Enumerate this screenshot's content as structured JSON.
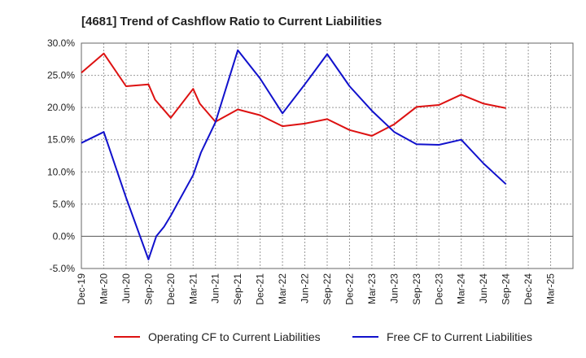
{
  "chart_data": {
    "type": "line",
    "title": "[4681]  Trend of Cashflow Ratio to Current Liabilities",
    "x_labels": [
      "Dec-19",
      "Mar-20",
      "Jun-20",
      "Sep-20",
      "Dec-20",
      "Mar-21",
      "Jun-21",
      "Sep-21",
      "Dec-21",
      "Mar-22",
      "Jun-22",
      "Sep-22",
      "Dec-22",
      "Mar-23",
      "Jun-23",
      "Sep-23",
      "Dec-23",
      "Mar-24",
      "Jun-24",
      "Sep-24",
      "Dec-24",
      "Mar-25"
    ],
    "y_ticks": [
      "30.0%",
      "25.0%",
      "20.0%",
      "15.0%",
      "10.0%",
      "5.0%",
      "0.0%",
      "-5.0%"
    ],
    "ylim": [
      -5,
      30
    ],
    "grid": true,
    "legend_position": "bottom",
    "series": [
      {
        "name": "Operating CF to Current Liabilities",
        "color": "#dd1111",
        "points": [
          [
            0,
            25.4
          ],
          [
            1,
            28.4
          ],
          [
            2,
            23.3
          ],
          [
            3,
            23.6
          ],
          [
            3.3,
            21.2
          ],
          [
            4,
            18.4
          ],
          [
            5,
            22.9
          ],
          [
            5.3,
            20.6
          ],
          [
            6,
            17.8
          ],
          [
            7,
            19.7
          ],
          [
            8,
            18.8
          ],
          [
            9,
            17.1
          ],
          [
            10,
            17.5
          ],
          [
            11,
            18.2
          ],
          [
            12,
            16.5
          ],
          [
            13,
            15.6
          ],
          [
            14,
            17.4
          ],
          [
            15,
            20.1
          ],
          [
            16,
            20.4
          ],
          [
            17,
            22.0
          ],
          [
            18,
            20.6
          ],
          [
            19,
            19.9
          ]
        ]
      },
      {
        "name": "Free CF to Current Liabilities",
        "color": "#1111cc",
        "points": [
          [
            0,
            14.5
          ],
          [
            1,
            16.2
          ],
          [
            2,
            6.0
          ],
          [
            3,
            -3.6
          ],
          [
            3.35,
            0.0
          ],
          [
            3.7,
            1.5
          ],
          [
            4,
            3.2
          ],
          [
            5,
            9.5
          ],
          [
            5.35,
            13.0
          ],
          [
            6,
            17.7
          ],
          [
            7,
            28.9
          ],
          [
            8,
            24.5
          ],
          [
            9,
            19.1
          ],
          [
            10,
            23.6
          ],
          [
            11,
            28.3
          ],
          [
            12,
            23.3
          ],
          [
            13,
            19.5
          ],
          [
            14,
            16.2
          ],
          [
            15,
            14.3
          ],
          [
            16,
            14.2
          ],
          [
            17,
            15.0
          ],
          [
            18,
            11.3
          ],
          [
            19,
            8.1
          ]
        ]
      }
    ]
  }
}
